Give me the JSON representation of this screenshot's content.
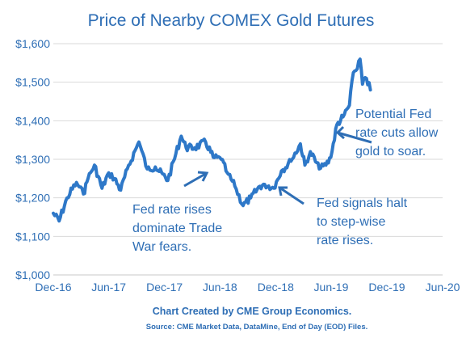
{
  "chart_data": {
    "type": "line",
    "title": "Price of Nearby COMEX Gold Futures",
    "ylim": [
      1000,
      1600
    ],
    "yticks": [
      1000,
      1100,
      1200,
      1300,
      1400,
      1500,
      1600
    ],
    "ytick_labels": [
      "$1,000",
      "$1,100",
      "$1,200",
      "$1,300",
      "$1,400",
      "$1,500",
      "$1,600"
    ],
    "xlim": [
      "2016-12",
      "2020-06"
    ],
    "xticks": [
      "2016-12",
      "2017-06",
      "2017-12",
      "2018-06",
      "2018-12",
      "2019-06",
      "2019-12",
      "2020-06"
    ],
    "xtick_labels": [
      "Dec-16",
      "Jun-17",
      "Dec-17",
      "Jun-18",
      "Dec-18",
      "Jun-19",
      "Dec-19",
      "Jun-20"
    ],
    "grid": "horizontal",
    "legend": "none",
    "series": [
      {
        "color": "#2e78c8",
        "x": [
          "2016-12-01",
          "2016-12-20",
          "2017-01-15",
          "2017-02-15",
          "2017-03-10",
          "2017-03-25",
          "2017-04-15",
          "2017-05-10",
          "2017-06-01",
          "2017-06-20",
          "2017-07-10",
          "2017-08-01",
          "2017-09-08",
          "2017-10-05",
          "2017-11-01",
          "2017-12-12",
          "2018-01-25",
          "2018-02-10",
          "2018-03-10",
          "2018-04-15",
          "2018-05-10",
          "2018-06-05",
          "2018-06-25",
          "2018-07-20",
          "2018-08-16",
          "2018-09-10",
          "2018-10-10",
          "2018-10-26",
          "2018-11-25",
          "2018-12-20",
          "2019-01-20",
          "2019-02-20",
          "2019-03-07",
          "2019-03-25",
          "2019-04-23",
          "2019-05-15",
          "2019-05-31",
          "2019-06-20",
          "2019-07-10",
          "2019-07-31",
          "2019-08-13",
          "2019-08-26",
          "2019-09-04",
          "2019-09-12",
          "2019-09-25",
          "2019-10-08"
        ],
        "values": [
          1160,
          1140,
          1200,
          1240,
          1210,
          1250,
          1285,
          1225,
          1265,
          1250,
          1220,
          1275,
          1345,
          1275,
          1280,
          1245,
          1360,
          1330,
          1330,
          1345,
          1305,
          1300,
          1265,
          1230,
          1180,
          1200,
          1230,
          1235,
          1225,
          1270,
          1295,
          1340,
          1285,
          1320,
          1275,
          1285,
          1305,
          1390,
          1410,
          1440,
          1525,
          1535,
          1560,
          1495,
          1510,
          1480
        ]
      }
    ],
    "annotations": [
      {
        "lines": [
          "Fed rate rises",
          "dominate Trade",
          "War fears."
        ]
      },
      {
        "lines": [
          "Fed signals halt",
          "to step-wise",
          "rate rises."
        ]
      },
      {
        "lines": [
          "Potential Fed",
          "rate cuts allow",
          "gold to soar."
        ]
      }
    ],
    "credit": "Chart Created by CME Group Economics.",
    "source": "Source:  CME Market Data, DataMine, End of Day (EOD) Files."
  }
}
